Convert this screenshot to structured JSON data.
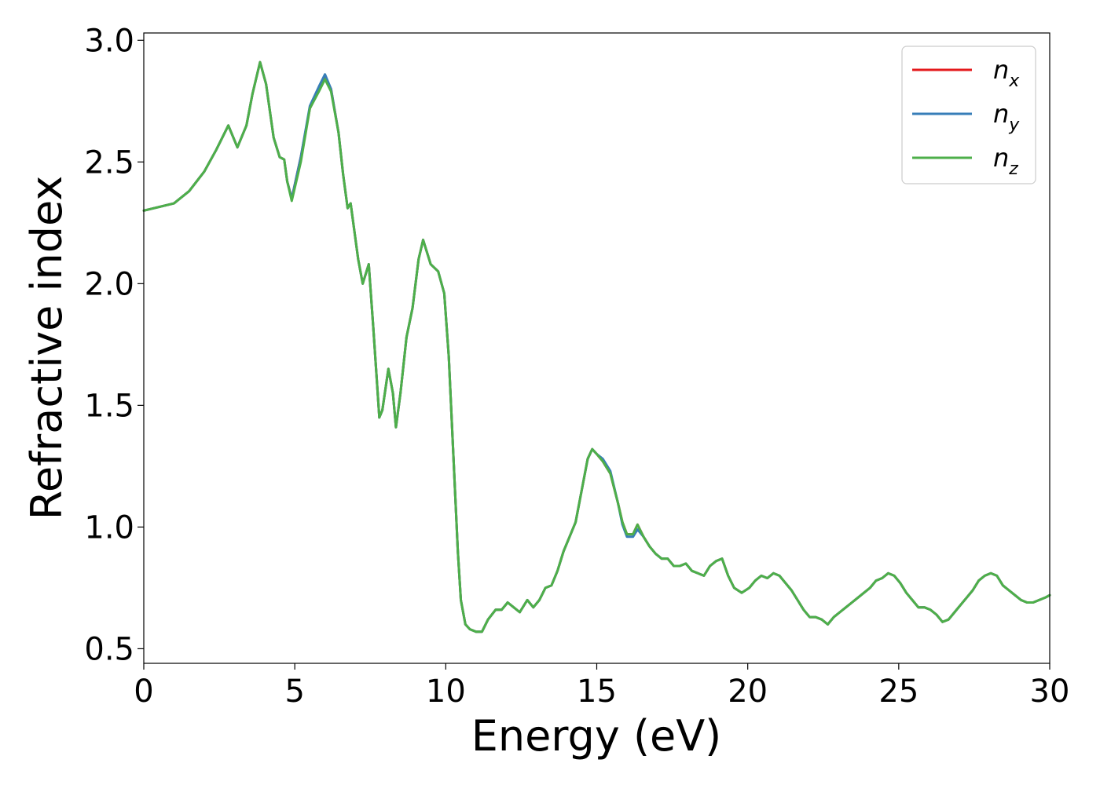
{
  "chart_data": {
    "type": "line",
    "xlabel": "Energy (eV)",
    "ylabel": "Refractive index",
    "xlim": [
      0,
      30
    ],
    "ylim": [
      0.44,
      3.03
    ],
    "xticks": [
      "0",
      "5",
      "10",
      "15",
      "20",
      "25",
      "30"
    ],
    "yticks": [
      "0.5",
      "1.0",
      "1.5",
      "2.0",
      "2.5",
      "3.0"
    ],
    "grid": false,
    "legend_position": "top-right",
    "series": [
      {
        "name": "n_x",
        "label_main": "n",
        "label_sub": "x",
        "color": "#e41a1c",
        "x": [
          0,
          1,
          1.5,
          2,
          2.4,
          2.8,
          3.1,
          3.4,
          3.6,
          3.85,
          4.05,
          4.3,
          4.5,
          4.65,
          4.75,
          4.9,
          5.2,
          5.5,
          5.8,
          6.0,
          6.2,
          6.45,
          6.6,
          6.75,
          6.85,
          7.1,
          7.25,
          7.45,
          7.6,
          7.8,
          7.9,
          8.1,
          8.25,
          8.35,
          8.5,
          8.7,
          8.9,
          9.1,
          9.25,
          9.5,
          9.75,
          9.95,
          10.1,
          10.25,
          10.4,
          10.5,
          10.65,
          10.8,
          11.0,
          11.2,
          11.4,
          11.65,
          11.85,
          12.05,
          12.25,
          12.45,
          12.7,
          12.9,
          13.1,
          13.3,
          13.5,
          13.7,
          13.9,
          14.1,
          14.3,
          14.5,
          14.7,
          14.85,
          15.0,
          15.2,
          15.45,
          15.7,
          15.85,
          16.0,
          16.2,
          16.35,
          16.55,
          16.75,
          16.95,
          17.15,
          17.35,
          17.55,
          17.75,
          17.95,
          18.15,
          18.35,
          18.55,
          18.75,
          18.95,
          19.15,
          19.35,
          19.55,
          19.8,
          20.05,
          20.25,
          20.45,
          20.65,
          20.85,
          21.05,
          21.25,
          21.45,
          21.65,
          21.85,
          22.05,
          22.25,
          22.45,
          22.65,
          22.85,
          23.05,
          23.25,
          23.45,
          23.65,
          23.85,
          24.05,
          24.25,
          24.45,
          24.65,
          24.85,
          25.05,
          25.25,
          25.45,
          25.65,
          25.85,
          26.05,
          26.25,
          26.45,
          26.65,
          26.85,
          27.05,
          27.25,
          27.45,
          27.65,
          27.85,
          28.05,
          28.25,
          28.45,
          28.65,
          28.85,
          29.05,
          29.25,
          29.45,
          29.65,
          29.85,
          30.0
        ],
        "y": [
          2.3,
          2.33,
          2.38,
          2.46,
          2.55,
          2.65,
          2.56,
          2.65,
          2.78,
          2.91,
          2.82,
          2.6,
          2.52,
          2.51,
          2.42,
          2.35,
          2.52,
          2.72,
          2.8,
          2.85,
          2.8,
          2.62,
          2.45,
          2.31,
          2.33,
          2.1,
          2.0,
          2.08,
          1.82,
          1.45,
          1.48,
          1.65,
          1.55,
          1.41,
          1.55,
          1.78,
          1.9,
          2.1,
          2.18,
          2.08,
          2.05,
          1.96,
          1.7,
          1.3,
          0.9,
          0.7,
          0.6,
          0.58,
          0.57,
          0.57,
          0.62,
          0.66,
          0.66,
          0.69,
          0.67,
          0.65,
          0.7,
          0.67,
          0.7,
          0.75,
          0.76,
          0.82,
          0.9,
          0.96,
          1.02,
          1.15,
          1.28,
          1.32,
          1.3,
          1.27,
          1.22,
          1.1,
          1.02,
          0.97,
          0.97,
          1.01,
          0.96,
          0.92,
          0.89,
          0.87,
          0.87,
          0.84,
          0.84,
          0.85,
          0.82,
          0.81,
          0.8,
          0.84,
          0.86,
          0.87,
          0.8,
          0.75,
          0.73,
          0.75,
          0.78,
          0.8,
          0.79,
          0.81,
          0.8,
          0.77,
          0.74,
          0.7,
          0.66,
          0.63,
          0.63,
          0.62,
          0.6,
          0.63,
          0.65,
          0.67,
          0.69,
          0.71,
          0.73,
          0.75,
          0.78,
          0.79,
          0.81,
          0.8,
          0.77,
          0.73,
          0.7,
          0.67,
          0.67,
          0.66,
          0.64,
          0.61,
          0.62,
          0.65,
          0.68,
          0.71,
          0.74,
          0.78,
          0.8,
          0.81,
          0.8,
          0.76,
          0.74,
          0.72,
          0.7,
          0.69,
          0.69,
          0.7,
          0.71,
          0.72
        ]
      },
      {
        "name": "n_y",
        "label_main": "n",
        "label_sub": "y",
        "color": "#377eb8",
        "x": [
          0,
          1,
          1.5,
          2,
          2.4,
          2.8,
          3.1,
          3.4,
          3.6,
          3.85,
          4.05,
          4.3,
          4.5,
          4.65,
          4.75,
          4.9,
          5.2,
          5.5,
          5.8,
          6.0,
          6.2,
          6.45,
          6.6,
          6.75,
          6.85,
          7.1,
          7.25,
          7.45,
          7.6,
          7.8,
          7.9,
          8.1,
          8.25,
          8.35,
          8.5,
          8.7,
          8.9,
          9.1,
          9.25,
          9.5,
          9.75,
          9.95,
          10.1,
          10.25,
          10.4,
          10.5,
          10.65,
          10.8,
          11.0,
          11.2,
          11.4,
          11.65,
          11.85,
          12.05,
          12.25,
          12.45,
          12.7,
          12.9,
          13.1,
          13.3,
          13.5,
          13.7,
          13.9,
          14.1,
          14.3,
          14.5,
          14.7,
          14.85,
          15.0,
          15.2,
          15.45,
          15.7,
          15.85,
          16.0,
          16.2,
          16.35,
          16.55,
          16.75,
          16.95,
          17.15,
          17.35,
          17.55,
          17.75,
          17.95,
          18.15,
          18.35,
          18.55,
          18.75,
          18.95,
          19.15,
          19.35,
          19.55,
          19.8,
          20.05,
          20.25,
          20.45,
          20.65,
          20.85,
          21.05,
          21.25,
          21.45,
          21.65,
          21.85,
          22.05,
          22.25,
          22.45,
          22.65,
          22.85,
          23.05,
          23.25,
          23.45,
          23.65,
          23.85,
          24.05,
          24.25,
          24.45,
          24.65,
          24.85,
          25.05,
          25.25,
          25.45,
          25.65,
          25.85,
          26.05,
          26.25,
          26.45,
          26.65,
          26.85,
          27.05,
          27.25,
          27.45,
          27.65,
          27.85,
          28.05,
          28.25,
          28.45,
          28.65,
          28.85,
          29.05,
          29.25,
          29.45,
          29.65,
          29.85,
          30.0
        ],
        "y": [
          2.3,
          2.33,
          2.38,
          2.46,
          2.55,
          2.65,
          2.56,
          2.65,
          2.78,
          2.91,
          2.82,
          2.6,
          2.52,
          2.51,
          2.42,
          2.35,
          2.52,
          2.73,
          2.81,
          2.86,
          2.8,
          2.62,
          2.45,
          2.31,
          2.33,
          2.1,
          2.0,
          2.08,
          1.82,
          1.45,
          1.48,
          1.65,
          1.55,
          1.41,
          1.55,
          1.78,
          1.9,
          2.1,
          2.18,
          2.08,
          2.05,
          1.96,
          1.7,
          1.3,
          0.9,
          0.7,
          0.6,
          0.58,
          0.57,
          0.57,
          0.62,
          0.66,
          0.66,
          0.69,
          0.67,
          0.65,
          0.7,
          0.67,
          0.7,
          0.75,
          0.76,
          0.82,
          0.9,
          0.96,
          1.02,
          1.15,
          1.28,
          1.32,
          1.3,
          1.28,
          1.23,
          1.1,
          1.01,
          0.96,
          0.96,
          0.99,
          0.96,
          0.92,
          0.89,
          0.87,
          0.87,
          0.84,
          0.84,
          0.85,
          0.82,
          0.81,
          0.8,
          0.84,
          0.86,
          0.87,
          0.8,
          0.75,
          0.73,
          0.75,
          0.78,
          0.8,
          0.79,
          0.81,
          0.8,
          0.77,
          0.74,
          0.7,
          0.66,
          0.63,
          0.63,
          0.62,
          0.6,
          0.63,
          0.65,
          0.67,
          0.69,
          0.71,
          0.73,
          0.75,
          0.78,
          0.79,
          0.81,
          0.8,
          0.77,
          0.73,
          0.7,
          0.67,
          0.67,
          0.66,
          0.64,
          0.61,
          0.62,
          0.65,
          0.68,
          0.71,
          0.74,
          0.78,
          0.8,
          0.81,
          0.8,
          0.76,
          0.74,
          0.72,
          0.7,
          0.69,
          0.69,
          0.7,
          0.71,
          0.72
        ]
      },
      {
        "name": "n_z",
        "label_main": "n",
        "label_sub": "z",
        "color": "#4daf4a",
        "x": [
          0,
          1,
          1.5,
          2,
          2.4,
          2.8,
          3.1,
          3.4,
          3.6,
          3.85,
          4.05,
          4.3,
          4.5,
          4.65,
          4.75,
          4.9,
          5.2,
          5.5,
          5.8,
          6.0,
          6.2,
          6.45,
          6.6,
          6.75,
          6.85,
          7.1,
          7.25,
          7.45,
          7.6,
          7.8,
          7.9,
          8.1,
          8.25,
          8.35,
          8.5,
          8.7,
          8.9,
          9.1,
          9.25,
          9.5,
          9.75,
          9.95,
          10.1,
          10.25,
          10.4,
          10.5,
          10.65,
          10.8,
          11.0,
          11.2,
          11.4,
          11.65,
          11.85,
          12.05,
          12.25,
          12.45,
          12.7,
          12.9,
          13.1,
          13.3,
          13.5,
          13.7,
          13.9,
          14.1,
          14.3,
          14.5,
          14.7,
          14.85,
          15.0,
          15.2,
          15.45,
          15.7,
          15.85,
          16.0,
          16.2,
          16.35,
          16.55,
          16.75,
          16.95,
          17.15,
          17.35,
          17.55,
          17.75,
          17.95,
          18.15,
          18.35,
          18.55,
          18.75,
          18.95,
          19.15,
          19.35,
          19.55,
          19.8,
          20.05,
          20.25,
          20.45,
          20.65,
          20.85,
          21.05,
          21.25,
          21.45,
          21.65,
          21.85,
          22.05,
          22.25,
          22.45,
          22.65,
          22.85,
          23.05,
          23.25,
          23.45,
          23.65,
          23.85,
          24.05,
          24.25,
          24.45,
          24.65,
          24.85,
          25.05,
          25.25,
          25.45,
          25.65,
          25.85,
          26.05,
          26.25,
          26.45,
          26.65,
          26.85,
          27.05,
          27.25,
          27.45,
          27.65,
          27.85,
          28.05,
          28.25,
          28.45,
          28.65,
          28.85,
          29.05,
          29.25,
          29.45,
          29.65,
          29.85,
          30.0
        ],
        "y": [
          2.3,
          2.33,
          2.38,
          2.46,
          2.55,
          2.65,
          2.56,
          2.65,
          2.78,
          2.91,
          2.82,
          2.6,
          2.52,
          2.51,
          2.42,
          2.34,
          2.5,
          2.72,
          2.79,
          2.84,
          2.79,
          2.62,
          2.45,
          2.31,
          2.33,
          2.1,
          2.0,
          2.08,
          1.82,
          1.45,
          1.48,
          1.65,
          1.55,
          1.41,
          1.55,
          1.78,
          1.9,
          2.1,
          2.18,
          2.08,
          2.05,
          1.96,
          1.7,
          1.3,
          0.9,
          0.7,
          0.6,
          0.58,
          0.57,
          0.57,
          0.62,
          0.66,
          0.66,
          0.69,
          0.67,
          0.65,
          0.7,
          0.67,
          0.7,
          0.75,
          0.76,
          0.82,
          0.9,
          0.96,
          1.02,
          1.15,
          1.28,
          1.32,
          1.3,
          1.27,
          1.22,
          1.1,
          1.02,
          0.97,
          0.97,
          1.01,
          0.96,
          0.92,
          0.89,
          0.87,
          0.87,
          0.84,
          0.84,
          0.85,
          0.82,
          0.81,
          0.8,
          0.84,
          0.86,
          0.87,
          0.8,
          0.75,
          0.73,
          0.75,
          0.78,
          0.8,
          0.79,
          0.81,
          0.8,
          0.77,
          0.74,
          0.7,
          0.66,
          0.63,
          0.63,
          0.62,
          0.6,
          0.63,
          0.65,
          0.67,
          0.69,
          0.71,
          0.73,
          0.75,
          0.78,
          0.79,
          0.81,
          0.8,
          0.77,
          0.73,
          0.7,
          0.67,
          0.67,
          0.66,
          0.64,
          0.61,
          0.62,
          0.65,
          0.68,
          0.71,
          0.74,
          0.78,
          0.8,
          0.81,
          0.8,
          0.76,
          0.74,
          0.72,
          0.7,
          0.69,
          0.69,
          0.7,
          0.71,
          0.72
        ]
      }
    ]
  }
}
